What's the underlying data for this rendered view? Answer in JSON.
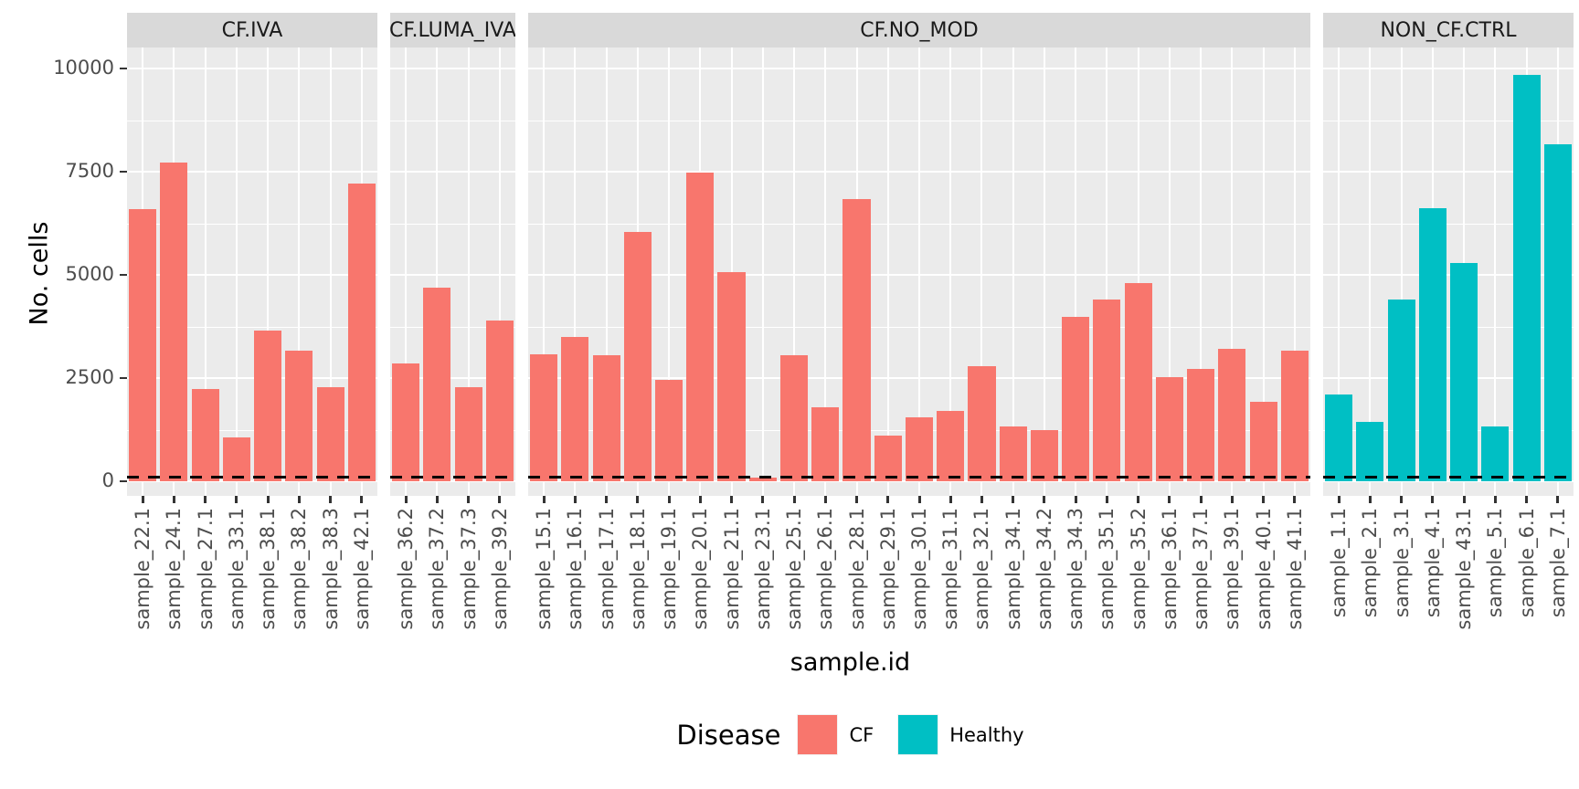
{
  "figure": {
    "background": "#FFFFFF"
  },
  "chart_data": {
    "type": "bar",
    "title": "",
    "xlabel": "sample.id",
    "ylabel": "No. cells",
    "ylim": [
      0,
      10000
    ],
    "yticks": [
      0,
      2500,
      5000,
      7500,
      10000
    ],
    "grid": {
      "major": true,
      "minor": true,
      "color": "#FFFFFF",
      "panel_background": "#EBEBEB",
      "strip_background": "#D9D9D9"
    },
    "threshold_line": {
      "value": 100,
      "style": "dashed",
      "color": "#000000"
    },
    "legend": {
      "title": "Disease",
      "position": "bottom",
      "entries": [
        {
          "label": "CF",
          "color": "#F8766D"
        },
        {
          "label": "Healthy",
          "color": "#00BFC4"
        }
      ]
    },
    "facets": [
      {
        "label": "CF.IVA",
        "disease": "CF",
        "color": "#F8766D",
        "categories": [
          "sample_22.1",
          "sample_24.1",
          "sample_27.1",
          "sample_33.1",
          "sample_38.1",
          "sample_38.2",
          "sample_38.3",
          "sample_42.1"
        ],
        "values": [
          6590,
          7720,
          2230,
          1060,
          3650,
          3160,
          2280,
          7210
        ]
      },
      {
        "label": "CF.LUMA_IVA",
        "disease": "CF",
        "color": "#F8766D",
        "categories": [
          "sample_36.2",
          "sample_37.2",
          "sample_37.3",
          "sample_39.2"
        ],
        "values": [
          2850,
          4700,
          2280,
          3890
        ]
      },
      {
        "label": "CF.NO_MOD",
        "disease": "CF",
        "color": "#F8766D",
        "categories": [
          "sample_15.1",
          "sample_16.1",
          "sample_17.1",
          "sample_18.1",
          "sample_19.1",
          "sample_20.1",
          "sample_21.1",
          "sample_23.1",
          "sample_25.1",
          "sample_26.1",
          "sample_28.1",
          "sample_29.1",
          "sample_30.1",
          "sample_31.1",
          "sample_32.1",
          "sample_34.1",
          "sample_34.2",
          "sample_34.3",
          "sample_35.1",
          "sample_35.2",
          "sample_36.1",
          "sample_37.1",
          "sample_39.1",
          "sample_40.1",
          "sample_41.1"
        ],
        "values": [
          3080,
          3500,
          3050,
          6040,
          2460,
          7480,
          5060,
          80,
          3050,
          1790,
          6840,
          1100,
          1550,
          1700,
          2790,
          1330,
          1240,
          3980,
          4400,
          4800,
          2520,
          2720,
          3210,
          1920,
          3170
        ]
      },
      {
        "label": "NON_CF.CTRL",
        "disease": "Healthy",
        "color": "#00BFC4",
        "categories": [
          "sample_1.1",
          "sample_2.1",
          "sample_3.1",
          "sample_4.1",
          "sample_43.1",
          "sample_5.1",
          "sample_6.1",
          "sample_7.1"
        ],
        "values": [
          2100,
          1440,
          4400,
          6610,
          5290,
          1330,
          9840,
          8160
        ]
      }
    ]
  }
}
